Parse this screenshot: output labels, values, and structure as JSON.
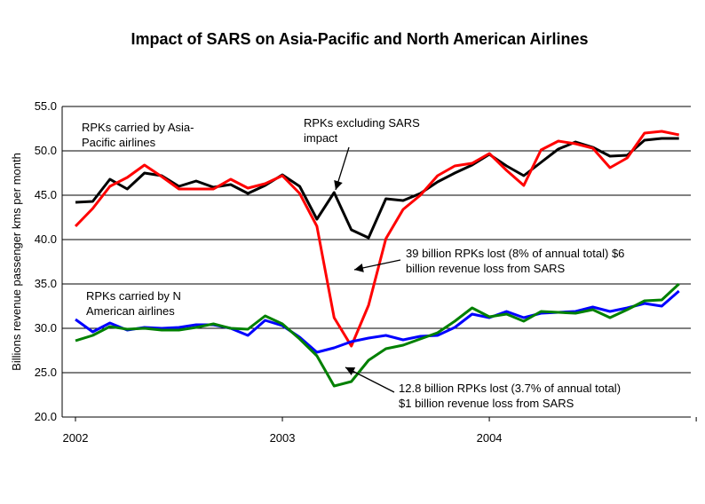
{
  "chart_data": {
    "type": "line",
    "title": "Impact of SARS on Asia-Pacific and North American Airlines",
    "ylabel": "Billions revenue passenger kms per month",
    "xlabel": "",
    "ylim": [
      20,
      55
    ],
    "yticks": [
      "20.0",
      "25.0",
      "30.0",
      "35.0",
      "40.0",
      "45.0",
      "50.0",
      "55.0"
    ],
    "xtick_labels": [
      {
        "label": "2002",
        "month": 0
      },
      {
        "label": "2003",
        "month": 12
      },
      {
        "label": "2004",
        "month": 24
      }
    ],
    "grid": "horizontal",
    "series": [
      {
        "key": "ap_excl",
        "color": "#000000",
        "values": [
          44.2,
          44.3,
          46.8,
          45.7,
          47.5,
          47.2,
          46.0,
          46.6,
          45.9,
          46.2,
          45.2,
          46.1,
          47.3,
          46.0,
          42.3,
          45.3,
          41.1,
          40.2,
          44.6,
          44.4,
          45.2,
          46.5,
          47.5,
          48.4,
          49.6,
          48.3,
          47.2,
          48.7,
          50.2,
          51.0,
          50.4,
          49.4,
          49.5,
          51.2,
          51.4,
          51.4
        ]
      },
      {
        "key": "ap",
        "color": "#ff0000",
        "values": [
          41.5,
          43.5,
          46.0,
          47.0,
          48.4,
          47.1,
          45.7,
          45.7,
          45.7,
          46.8,
          45.8,
          46.3,
          47.2,
          45.2,
          41.5,
          31.2,
          28.0,
          32.6,
          40.1,
          43.4,
          45.0,
          47.2,
          48.3,
          48.6,
          49.7,
          47.8,
          46.1,
          50.1,
          51.1,
          50.8,
          50.3,
          48.1,
          49.2,
          52.0,
          52.2,
          51.8
        ]
      },
      {
        "key": "na_blue",
        "color": "#0000ff",
        "values": [
          31.0,
          29.6,
          30.6,
          29.8,
          30.1,
          30.0,
          30.1,
          30.4,
          30.4,
          30.0,
          29.2,
          30.9,
          30.3,
          29.0,
          27.3,
          27.8,
          28.5,
          28.9,
          29.2,
          28.7,
          29.1,
          29.2,
          30.1,
          31.6,
          31.2,
          31.9,
          31.2,
          31.7,
          31.8,
          31.9,
          32.4,
          31.9,
          32.3,
          32.8,
          32.5,
          34.2
        ]
      },
      {
        "key": "na_green",
        "color": "#008000",
        "values": [
          28.6,
          29.2,
          30.2,
          29.9,
          30.0,
          29.8,
          29.8,
          30.1,
          30.5,
          30.0,
          29.9,
          31.4,
          30.5,
          28.8,
          26.9,
          23.5,
          24.0,
          26.4,
          27.7,
          28.1,
          28.8,
          29.5,
          30.8,
          32.3,
          31.3,
          31.6,
          30.8,
          31.9,
          31.8,
          31.7,
          32.1,
          31.2,
          32.1,
          33.1,
          33.2,
          35.0
        ]
      }
    ],
    "annotations": [
      {
        "lines": [
          "RPKs carried by Asia-",
          "Pacific airlines"
        ]
      },
      {
        "lines": [
          "RPKs excluding SARS",
          "impact"
        ]
      },
      {
        "lines": [
          "39 billion RPKs lost (8% of annual total) $6",
          "billion revenue loss from SARS"
        ]
      },
      {
        "lines": [
          "RPKs carried by N",
          "American airlines"
        ]
      },
      {
        "lines": [
          "12.8 billion RPKs lost (3.7% of annual total)",
          "$1 billion revenue loss from SARS"
        ]
      }
    ]
  }
}
